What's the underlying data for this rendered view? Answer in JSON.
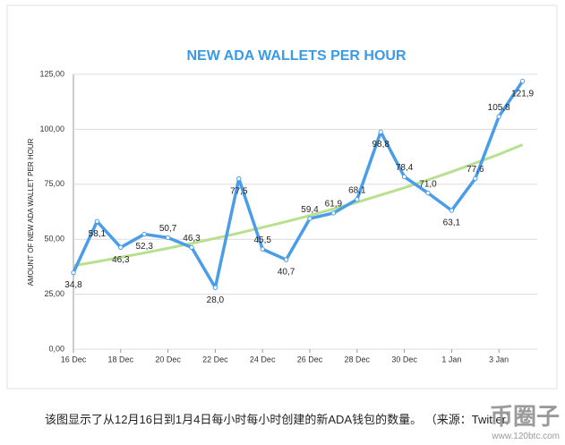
{
  "chart_data": {
    "type": "line",
    "title": "NEW ADA WALLETS PER HOUR",
    "y_label": "AMOUNT OF NEW ADA WALLET PER HOUR",
    "categories": [
      "16 Dec",
      null,
      "18 Dec",
      null,
      "20 Dec",
      null,
      "22 Dec",
      null,
      "24 Dec",
      null,
      "26 Dec",
      null,
      "28 Dec",
      null,
      "30 Dec",
      null,
      "1 Jan",
      null,
      "3 Jan",
      null
    ],
    "series": [
      {
        "color": "#4a9de8",
        "values": [
          34.8,
          58.1,
          46.3,
          52.3,
          50.7,
          46.3,
          28.0,
          77.5,
          45.5,
          40.7,
          59.4,
          61.9,
          68.1,
          98.8,
          78.4,
          71.0,
          63.1,
          77.6,
          105.8,
          121.9
        ],
        "value_labels": [
          "34,8",
          "58,1",
          "46,3",
          "52,3",
          "50,7",
          "46,3",
          "28,0",
          "77,5",
          "45,5",
          "40,7",
          "59,4",
          "61,9",
          "68,1",
          "98,8",
          "78,4",
          "71,0",
          "63,1",
          "77,6",
          "105,8",
          "121,9"
        ]
      }
    ],
    "trend": {
      "color": "#b8e08e",
      "values": [
        38,
        39.8,
        41.8,
        43.8,
        45.9,
        48.1,
        50.4,
        52.8,
        55.4,
        58.0,
        60.8,
        63.8,
        66.8,
        70.1,
        73.4,
        77.0,
        80.7,
        84.6,
        88.6,
        93.0
      ]
    },
    "ylim": [
      0,
      125
    ],
    "yticks": [
      {
        "value": 0,
        "label": "0,00"
      },
      {
        "value": 25,
        "label": "25,00"
      },
      {
        "value": 50,
        "label": "50,00"
      },
      {
        "value": 75,
        "label": "75,00"
      },
      {
        "value": 100,
        "label": "100,00"
      },
      {
        "value": 125,
        "label": "125,00"
      }
    ],
    "grid": true
  },
  "caption": "该图显示了从12月16日到1月4日每小时每小时创建的新ADA钱包的数量。 （来源：Twitter）",
  "watermark": {
    "name": "币圈子",
    "url": "www.120btc.com"
  }
}
